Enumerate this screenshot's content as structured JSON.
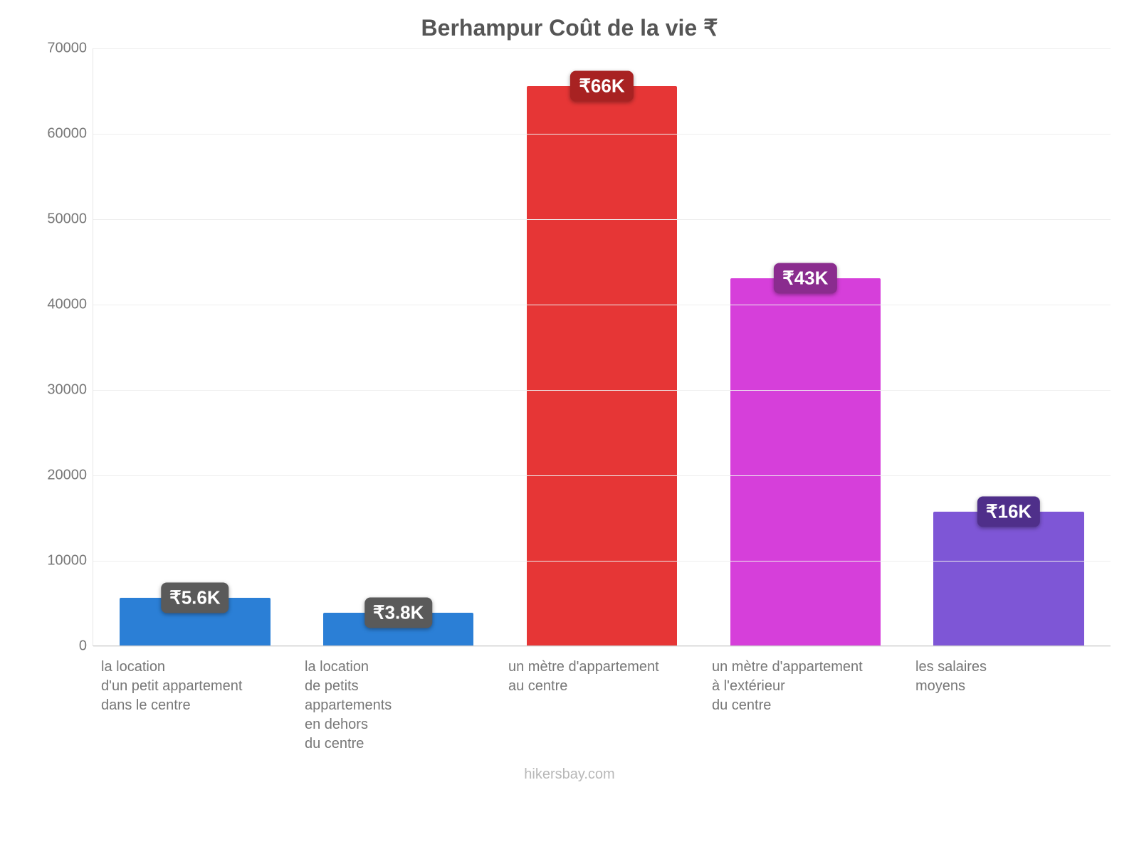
{
  "chart": {
    "type": "bar",
    "title": "Berhampur Coût de la vie ₹",
    "title_fontsize": 32,
    "title_color": "#555555",
    "background_color": "#ffffff",
    "grid_color": "#eeeeee",
    "axis_label_color": "#777777",
    "axis_fontsize": 20,
    "y": {
      "min": 0,
      "max": 70000,
      "step": 10000,
      "ticks": [
        "0",
        "10000",
        "20000",
        "30000",
        "40000",
        "50000",
        "60000",
        "70000"
      ]
    },
    "bar_width_percent": 74,
    "value_label_fontsize": 26,
    "categories": [
      {
        "label": "la location\nd'un petit appartement\ndans le centre",
        "value": 5600,
        "bar_color": "#2b7fd6",
        "value_label": "₹5.6K",
        "value_label_bg": "#5a5a5a"
      },
      {
        "label": "la location\nde petits\nappartements\nen dehors\ndu centre",
        "value": 3800,
        "bar_color": "#2b7fd6",
        "value_label": "₹3.8K",
        "value_label_bg": "#5a5a5a"
      },
      {
        "label": "un mètre d'appartement\nau centre",
        "value": 65500,
        "bar_color": "#e63636",
        "value_label": "₹66K",
        "value_label_bg": "#a82222"
      },
      {
        "label": "un mètre d'appartement\nà l'extérieur\ndu centre",
        "value": 43000,
        "bar_color": "#d63fda",
        "value_label": "₹43K",
        "value_label_bg": "#8a2c8e"
      },
      {
        "label": "les salaires\nmoyens",
        "value": 15700,
        "bar_color": "#7e56d6",
        "value_label": "₹16K",
        "value_label_bg": "#4f2f8a"
      }
    ],
    "source_text": "hikersbay.com",
    "source_color": "#b8b8b8",
    "source_fontsize": 20,
    "xlabel_fontsize": 20
  }
}
